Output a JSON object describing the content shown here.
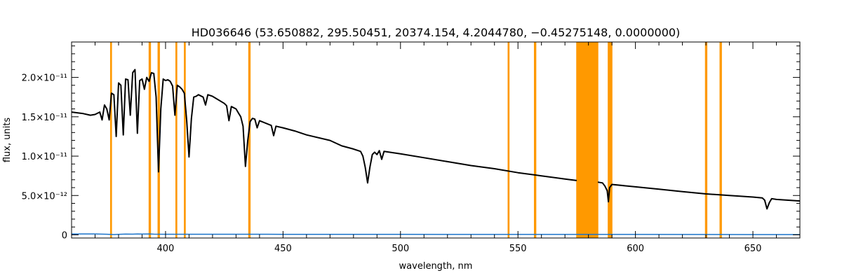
{
  "chart_data": {
    "type": "line",
    "title": "HD036646   (53.650882, 295.50451, 20374.154, 4.2044780, −0.45275148, 0.0000000)",
    "xlabel": "wavelength, nm",
    "ylabel": "flux, units",
    "xlim": [
      360,
      670
    ],
    "ylim": [
      -4e-13,
      2.45e-11
    ],
    "x_ticks": [
      400,
      450,
      500,
      550,
      600,
      650
    ],
    "y_ticks": [
      {
        "value": 0,
        "label": "0"
      },
      {
        "value": 5e-12,
        "label": "5.0×10⁻¹²"
      },
      {
        "value": 1e-11,
        "label": "1.0×10⁻¹¹"
      },
      {
        "value": 1.5e-11,
        "label": "1.5×10⁻¹¹"
      },
      {
        "value": 2e-11,
        "label": "2.0×10⁻¹¹"
      }
    ],
    "masked_bands_nm": [
      [
        376.4,
        377.2
      ],
      [
        392.8,
        393.8
      ],
      [
        396.6,
        397.6
      ],
      [
        404.2,
        405.0
      ],
      [
        407.8,
        408.6
      ],
      [
        435.2,
        436.2
      ],
      [
        545.6,
        546.4
      ],
      [
        556.8,
        557.8
      ],
      [
        574.8,
        584.2
      ],
      [
        588.2,
        590.2
      ],
      [
        629.6,
        630.6
      ],
      [
        635.8,
        636.8
      ]
    ],
    "mask_color": "#ff9900",
    "series": [
      {
        "color": "#000000",
        "segments": [
          [
            [
              360,
              1.56e-11
            ],
            [
              365,
              1.54e-11
            ],
            [
              368,
              1.52e-11
            ],
            [
              370,
              1.53e-11
            ],
            [
              372,
              1.56e-11
            ],
            [
              373,
              1.46e-11
            ],
            [
              374,
              1.65e-11
            ],
            [
              375,
              1.6e-11
            ],
            [
              376,
              1.46e-11
            ],
            [
              377,
              1.8e-11
            ],
            [
              378,
              1.78e-11
            ],
            [
              379,
              1.25e-11
            ],
            [
              380,
              1.93e-11
            ],
            [
              381,
              1.9e-11
            ],
            [
              382,
              1.27e-11
            ],
            [
              383,
              1.98e-11
            ],
            [
              384,
              1.97e-11
            ],
            [
              385,
              1.52e-11
            ],
            [
              386,
              2.06e-11
            ],
            [
              387,
              2.1e-11
            ],
            [
              388,
              1.29e-11
            ],
            [
              389,
              1.96e-11
            ],
            [
              390,
              1.98e-11
            ],
            [
              391,
              1.85e-11
            ],
            [
              392,
              2e-11
            ],
            [
              393,
              1.95e-11
            ],
            [
              394,
              2.06e-11
            ],
            [
              395,
              2.05e-11
            ],
            [
              396,
              1.75e-11
            ],
            [
              397,
              8e-12
            ],
            [
              398,
              1.6e-11
            ],
            [
              399,
              1.98e-11
            ],
            [
              400,
              1.96e-11
            ],
            [
              401,
              1.97e-11
            ],
            [
              402,
              1.95e-11
            ],
            [
              403,
              1.89e-11
            ],
            [
              404,
              1.52e-11
            ],
            [
              405,
              1.9e-11
            ],
            [
              406,
              1.88e-11
            ],
            [
              407,
              1.85e-11
            ],
            [
              408,
              1.8e-11
            ],
            [
              409,
              1.45e-11
            ],
            [
              410,
              9.9e-12
            ],
            [
              411,
              1.48e-11
            ],
            [
              412,
              1.75e-11
            ],
            [
              413,
              1.76e-11
            ],
            [
              414,
              1.78e-11
            ],
            [
              416,
              1.75e-11
            ],
            [
              417,
              1.65e-11
            ],
            [
              418,
              1.78e-11
            ],
            [
              420,
              1.76e-11
            ],
            [
              425,
              1.67e-11
            ],
            [
              426,
              1.64e-11
            ],
            [
              427,
              1.45e-11
            ],
            [
              428,
              1.63e-11
            ],
            [
              430,
              1.6e-11
            ],
            [
              431,
              1.55e-11
            ],
            [
              432,
              1.5e-11
            ],
            [
              433,
              1.38e-11
            ],
            [
              434,
              8.7e-12
            ],
            [
              435,
              1.2e-11
            ],
            [
              436,
              1.44e-11
            ],
            [
              437,
              1.48e-11
            ],
            [
              438,
              1.47e-11
            ],
            [
              439,
              1.36e-11
            ],
            [
              440,
              1.45e-11
            ],
            [
              445,
              1.39e-11
            ],
            [
              446,
              1.26e-11
            ],
            [
              447,
              1.38e-11
            ],
            [
              450,
              1.36e-11
            ],
            [
              455,
              1.32e-11
            ],
            [
              460,
              1.27e-11
            ],
            [
              470,
              1.2e-11
            ],
            [
              475,
              1.13e-11
            ],
            [
              480,
              1.09e-11
            ],
            [
              483,
              1.06e-11
            ],
            [
              484,
              1e-11
            ],
            [
              485,
              8.6e-12
            ],
            [
              486,
              6.6e-12
            ],
            [
              487,
              8.6e-12
            ],
            [
              488,
              1.02e-11
            ],
            [
              489,
              1.05e-11
            ],
            [
              490,
              1.02e-11
            ],
            [
              491,
              1.07e-11
            ],
            [
              492,
              9.6e-12
            ],
            [
              493,
              1.06e-11
            ],
            [
              500,
              1.03e-11
            ],
            [
              510,
              9.8e-12
            ],
            [
              520,
              9.3e-12
            ],
            [
              530,
              8.8e-12
            ],
            [
              540,
              8.4e-12
            ],
            [
              550,
              7.9e-12
            ],
            [
              560,
              7.5e-12
            ],
            [
              570,
              7.1e-12
            ],
            [
              575,
              6.9e-12
            ]
          ],
          [
            [
              584,
              6.7e-12
            ],
            [
              586,
              6.6e-12
            ],
            [
              587,
              6.2e-12
            ],
            [
              588,
              5.6e-12
            ],
            [
              588.5,
              4.2e-12
            ],
            [
              589,
              6e-12
            ],
            [
              590,
              6.4e-12
            ],
            [
              600,
              6.1e-12
            ],
            [
              610,
              5.8e-12
            ],
            [
              620,
              5.5e-12
            ],
            [
              630,
              5.2e-12
            ],
            [
              640,
              5e-12
            ],
            [
              650,
              4.8e-12
            ],
            [
              654,
              4.7e-12
            ],
            [
              655,
              4.4e-12
            ],
            [
              656,
              3.3e-12
            ],
            [
              657,
              4.1e-12
            ],
            [
              658,
              4.6e-12
            ],
            [
              660,
              4.5e-12
            ],
            [
              665,
              4.4e-12
            ],
            [
              670,
              4.3e-12
            ]
          ]
        ]
      },
      {
        "color": "#1a73c9",
        "segments": [
          [
            [
              360,
              1.2e-13
            ],
            [
              370,
              1.1e-13
            ],
            [
              375,
              8e-14
            ],
            [
              378,
              4e-14
            ],
            [
              380,
              6e-14
            ],
            [
              383,
              1e-13
            ],
            [
              386,
              9e-14
            ],
            [
              388,
              1.2e-13
            ],
            [
              390,
              1e-13
            ],
            [
              393,
              1.1e-13
            ],
            [
              395,
              9e-14
            ],
            [
              400,
              8e-14
            ],
            [
              450,
              7e-14
            ],
            [
              500,
              6e-14
            ],
            [
              550,
              5e-14
            ],
            [
              600,
              5e-14
            ],
            [
              650,
              4e-14
            ],
            [
              670,
              4e-14
            ]
          ]
        ]
      }
    ]
  }
}
